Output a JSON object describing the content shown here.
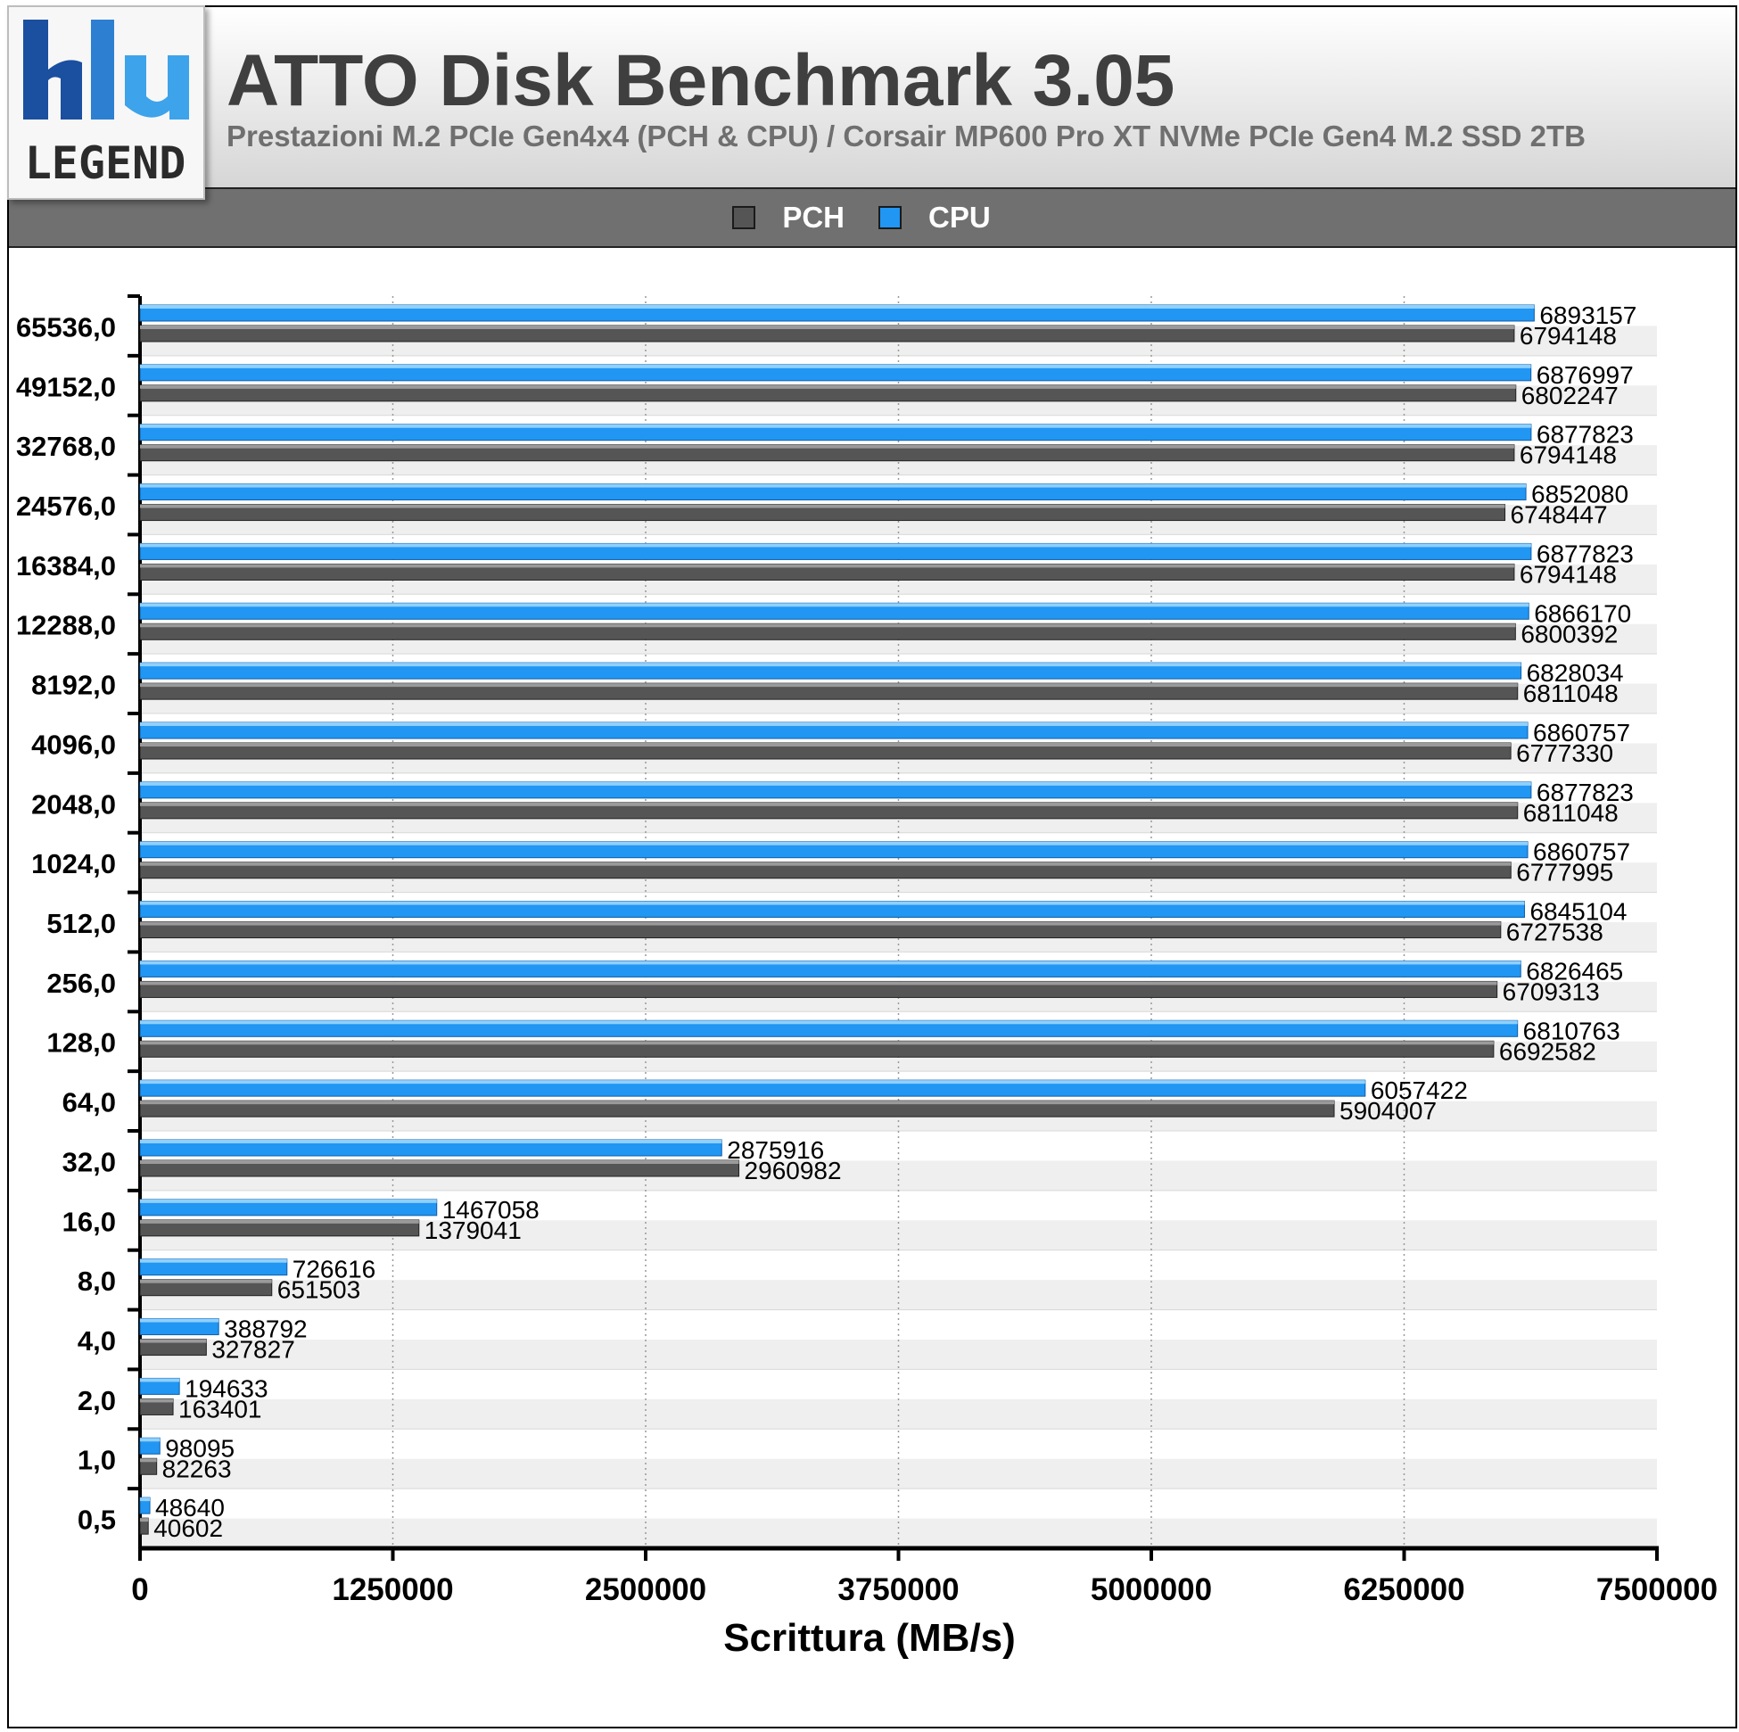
{
  "header": {
    "title": "ATTO Disk Benchmark 3.05",
    "subtitle": "Prestazioni M.2 PCIe Gen4x4 (PCH & CPU) / Corsair MP600 Pro XT NVMe PCIe Gen4 M.2 SSD 2TB",
    "logo_text": "LEGEND"
  },
  "colors": {
    "pch": "#555555",
    "cpu": "#2196f3",
    "legend_bar": "#707070"
  },
  "chart_data": {
    "type": "bar",
    "orientation": "horizontal",
    "title": "ATTO Disk Benchmark 3.05",
    "subtitle": "Prestazioni M.2 PCIe Gen4x4 (PCH & CPU) / Corsair MP600 Pro XT NVMe PCIe Gen4 M.2 SSD 2TB",
    "xlabel": "Scrittura (MB/s)",
    "ylabel": "",
    "xlim": [
      0,
      7500000
    ],
    "xticks": [
      "0",
      "1250000",
      "2500000",
      "3750000",
      "5000000",
      "6250000",
      "7500000"
    ],
    "legend_position": "top-center",
    "grid": true,
    "categories": [
      "65536,0",
      "49152,0",
      "32768,0",
      "24576,0",
      "16384,0",
      "12288,0",
      "8192,0",
      "4096,0",
      "2048,0",
      "1024,0",
      "512,0",
      "256,0",
      "128,0",
      "64,0",
      "32,0",
      "16,0",
      "8,0",
      "4,0",
      "2,0",
      "1,0",
      "0,5"
    ],
    "series": [
      {
        "name": "PCH",
        "values": [
          6794148,
          6802247,
          6794148,
          6748447,
          6794148,
          6800392,
          6811048,
          6777330,
          6811048,
          6777995,
          6727538,
          6709313,
          6692582,
          5904007,
          2960982,
          1379041,
          651503,
          327827,
          163401,
          82263,
          40602
        ]
      },
      {
        "name": "CPU",
        "values": [
          6893157,
          6876997,
          6877823,
          6852080,
          6877823,
          6866170,
          6828034,
          6860757,
          6877823,
          6860757,
          6845104,
          6826465,
          6810763,
          6057422,
          2875916,
          1467058,
          726616,
          388792,
          194633,
          98095,
          48640
        ]
      }
    ]
  }
}
